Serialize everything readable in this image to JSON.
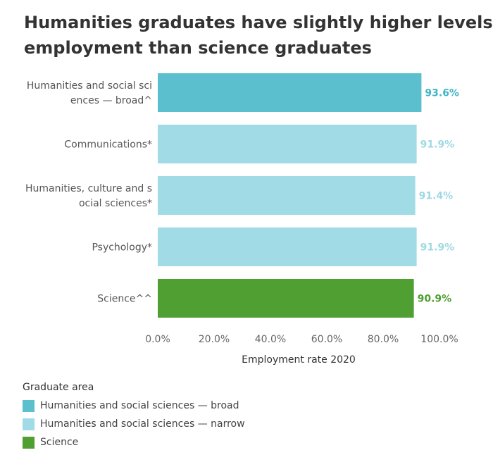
{
  "chart_data": {
    "type": "bar",
    "orientation": "horizontal",
    "title_lines": [
      "Humanities graduates have slightly higher levels of",
      "employment than science graduates"
    ],
    "categories": [
      [
        "Humanities and social sci",
        "ences — broad^"
      ],
      [
        "Communications*"
      ],
      [
        "Humanities, culture and s",
        "ocial sciences*"
      ],
      [
        "Psychology*"
      ],
      [
        "Science^^"
      ]
    ],
    "values": [
      93.6,
      91.9,
      91.4,
      91.9,
      90.9
    ],
    "value_labels": [
      "93.6%",
      "91.9%",
      "91.4%",
      "91.9%",
      "90.9%"
    ],
    "groups": [
      "Humanities and social sciences — broad",
      "Humanities and social sciences — narrow",
      "Humanities and social sciences — narrow",
      "Humanities and social sciences — narrow",
      "Science"
    ],
    "xlabel": "Employment rate 2020",
    "ylabel": "",
    "xlim": [
      0,
      100
    ],
    "xticks": [
      0,
      20,
      40,
      60,
      80,
      100
    ],
    "xtick_labels": [
      "0.0%",
      "20.0%",
      "40.0%",
      "60.0%",
      "80.0%",
      "100.0%"
    ],
    "grid": false,
    "legend": {
      "title": "Graduate area",
      "placement": "bottom-left",
      "items": [
        {
          "label": "Humanities and social sciences — broad",
          "color": "#5bbfce"
        },
        {
          "label": "Humanities and social sciences — narrow",
          "color": "#a1dbe6"
        },
        {
          "label": "Science",
          "color": "#4f9f32"
        }
      ]
    },
    "colors": {
      "broad_bar": "#5bbfce",
      "narrow_bar": "#a1dbe6",
      "science_bar": "#4f9f32",
      "broad_label": "#3fb5c6",
      "narrow_label": "#9dd9e3",
      "science_label": "#4f9f32"
    }
  }
}
